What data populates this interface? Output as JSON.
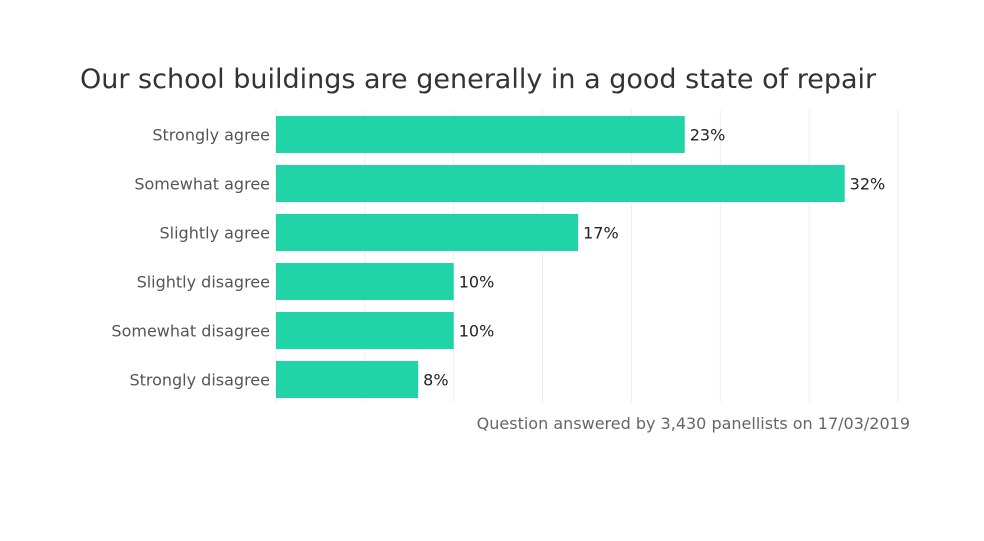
{
  "chart_data": {
    "type": "bar",
    "orientation": "horizontal",
    "title": "Our school buildings are generally in a good state of repair",
    "categories": [
      "Strongly agree",
      "Somewhat agree",
      "Slightly agree",
      "Slightly disagree",
      "Somewhat disagree",
      "Strongly disagree"
    ],
    "values": [
      23,
      32,
      17,
      10,
      10,
      8
    ],
    "value_labels": [
      "23%",
      "32%",
      "17%",
      "10%",
      "10%",
      "8%"
    ],
    "xlim": [
      0,
      35
    ],
    "grid": true,
    "bar_color": "#21d4a7",
    "footnote": "Question answered by 3,430 panellists on 17/03/2019"
  }
}
